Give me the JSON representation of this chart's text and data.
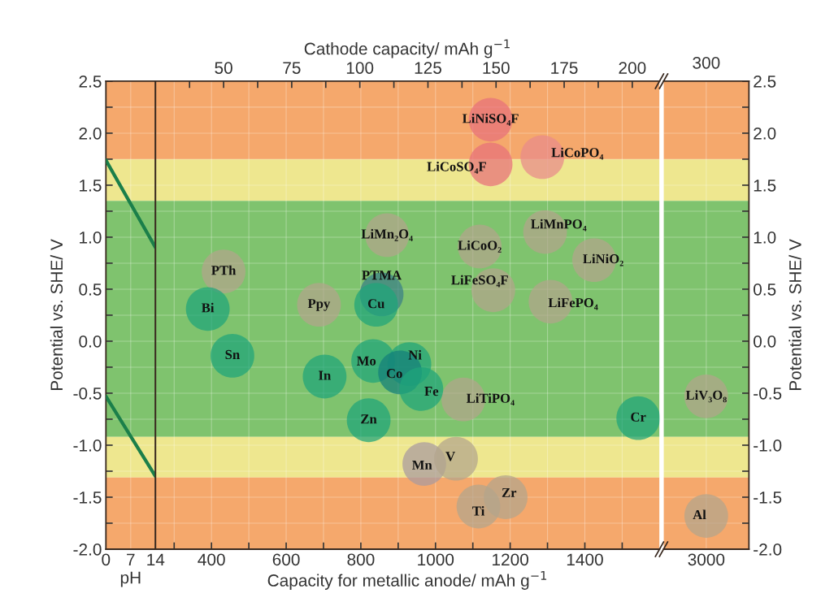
{
  "chart_data": [
    {
      "type": "line",
      "xlabel": "pH",
      "ylabel": "Potential vs. SHE/ V",
      "xlim": [
        0,
        14
      ],
      "xticks": [
        0,
        7,
        14
      ],
      "ylim": [
        -2,
        2.5
      ],
      "yticks": [
        2.5,
        {
          "value": 2.25,
          "label": null
        },
        {
          "value": 2,
          "label": "2.0"
        },
        {
          "value": 1.75,
          "label": null
        },
        1.5,
        {
          "value": 1.25,
          "label": null
        },
        {
          "value": 1,
          "label": "1.0"
        },
        {
          "value": 0.75,
          "label": null
        },
        0.5,
        {
          "value": 0.25,
          "label": null
        },
        {
          "value": 0,
          "label": "0.0"
        },
        {
          "value": -0.25,
          "label": null
        },
        -0.5,
        {
          "value": -0.75,
          "label": null
        },
        {
          "value": -1,
          "label": "-1.0"
        },
        {
          "value": -1.25,
          "label": null
        },
        -1.5,
        {
          "value": -1.75,
          "label": null
        },
        {
          "value": -2,
          "label": "-2.0"
        }
      ],
      "grid": true,
      "bands": [
        {
          "axis": "y",
          "from": 1.75,
          "to": 2.5,
          "color": "#f5a86c"
        },
        {
          "axis": "y",
          "from": 1.35,
          "to": 1.75,
          "color": "#eee78f"
        },
        {
          "axis": "y",
          "from": -0.92,
          "to": 1.35,
          "color": "#7fc36e"
        },
        {
          "axis": "y",
          "from": -1.31,
          "to": -0.92,
          "color": "#eee78f"
        },
        {
          "axis": "y",
          "from": -2,
          "to": -1.31,
          "color": "#f5a86c"
        }
      ],
      "series": [
        {
          "color": "#1b7f4a",
          "x": [
            0,
            14
          ],
          "values": [
            1.74,
            0.9
          ]
        },
        {
          "color": "#1b7f4a",
          "x": [
            0,
            14
          ],
          "values": [
            -0.53,
            -1.3
          ]
        }
      ]
    },
    {
      "type": "scatter",
      "xlabel": "Capacity for metallic anode/ mAh g$^{−1}$",
      "x2label": "Cathode capacity/ mAh g$^{−1}$",
      "xlim": [
        250,
        1600
      ],
      "xticks": [
        {
          "value": 300,
          "label": null
        },
        400,
        {
          "value": 500,
          "label": null
        },
        600,
        {
          "value": 700,
          "label": null
        },
        800,
        {
          "value": 900,
          "label": null
        },
        1000,
        {
          "value": 1100,
          "label": null
        },
        1200,
        {
          "value": 1300,
          "label": null
        },
        1400,
        {
          "value": 1500,
          "label": null
        }
      ],
      "x2lim": [
        25,
        210
      ],
      "x2ticks": [
        {
          "value": 37.5,
          "label": null
        },
        50,
        {
          "value": 62.5,
          "label": null
        },
        75,
        {
          "value": 87.5,
          "label": null
        },
        100,
        {
          "value": 112.5,
          "label": null
        },
        125,
        {
          "value": 137.5,
          "label": null
        },
        150,
        {
          "value": 162.5,
          "label": null
        },
        175,
        {
          "value": 187.5,
          "label": null
        },
        200
      ],
      "ylim": [
        -2,
        2.5
      ],
      "yticks": [
        {
          "value": 2.5,
          "label": null
        },
        {
          "value": 2.25,
          "label": null
        },
        {
          "value": 2,
          "label": null
        },
        {
          "value": 1.75,
          "label": null
        },
        {
          "value": 1.5,
          "label": null
        },
        {
          "value": 1.25,
          "label": null
        },
        {
          "value": 1,
          "label": null
        },
        {
          "value": 0.75,
          "label": null
        },
        {
          "value": 0.5,
          "label": null
        },
        {
          "value": 0.25,
          "label": null
        },
        {
          "value": 0,
          "label": null
        },
        {
          "value": -0.25,
          "label": null
        },
        {
          "value": -0.5,
          "label": null
        },
        {
          "value": -0.75,
          "label": null
        },
        {
          "value": -1,
          "label": null
        },
        {
          "value": -1.25,
          "label": null
        },
        {
          "value": -1.5,
          "label": null
        },
        {
          "value": -1.75,
          "label": null
        },
        {
          "value": -2,
          "label": null
        }
      ],
      "tick_labels": "x",
      "grid": true,
      "marker": "circle",
      "bands": [
        {
          "axis": "y",
          "from": 1.75,
          "to": 2.5,
          "color": "#f5a86c"
        },
        {
          "axis": "y",
          "from": 1.35,
          "to": 1.75,
          "color": "#eee78f"
        },
        {
          "axis": "y",
          "from": -0.92,
          "to": 1.35,
          "color": "#7fc36e"
        },
        {
          "axis": "y",
          "from": -1.31,
          "to": -0.92,
          "color": "#eee78f"
        },
        {
          "axis": "y",
          "from": -2,
          "to": -1.31,
          "color": "#f5a86c"
        }
      ],
      "series": [
        {
          "name": "Bi",
          "color": "#1fa57a",
          "x": [
            390
          ],
          "values": [
            0.31
          ]
        },
        {
          "name": "Sn",
          "color": "#1fa57a",
          "x": [
            456
          ],
          "values": [
            -0.14
          ]
        },
        {
          "name": "In",
          "color": "#1fa57a",
          "x": [
            703
          ],
          "values": [
            -0.34
          ]
        },
        {
          "name": "Cu",
          "color": "#1fa57a",
          "x": [
            841
          ],
          "values": [
            0.35
          ]
        },
        {
          "name": "Mo",
          "color": "#1fa57a",
          "x": [
            833
          ],
          "values": [
            -0.19
          ]
        },
        {
          "name": "Ni",
          "color": "#1fa57a",
          "x": [
            930
          ],
          "values": [
            -0.22
          ]
        },
        {
          "name": "Co",
          "color": "#14807a",
          "x": [
            905
          ],
          "values": [
            -0.3
          ]
        },
        {
          "name": "Fe",
          "color": "#1fa57a",
          "x": [
            962
          ],
          "values": [
            -0.46
          ]
        },
        {
          "name": "Zn",
          "color": "#1fa57a",
          "x": [
            821
          ],
          "values": [
            -0.76
          ]
        },
        {
          "name": "Mn",
          "color": "#a99aa0",
          "x": [
            970
          ],
          "values": [
            -1.18
          ]
        },
        {
          "name": "V",
          "color": "#b3a58c",
          "x": [
            1055
          ],
          "values": [
            -1.13
          ]
        },
        {
          "name": "Ti",
          "color": "#b3a58c",
          "x": [
            1115
          ],
          "values": [
            -1.59
          ]
        },
        {
          "name": "Zr",
          "color": "#b3a58c",
          "x": [
            1188
          ],
          "values": [
            -1.5
          ]
        },
        {
          "name": "Cr",
          "color": "#1fa57a",
          "x": [
            1543
          ],
          "values": [
            -0.74
          ]
        },
        {
          "name": "PTh",
          "axis": "x2",
          "color": "#b3a58c",
          "x": [
            50
          ],
          "values": [
            0.67
          ]
        },
        {
          "name": "Ppy",
          "axis": "x2",
          "color": "#b3a58c",
          "x": [
            85
          ],
          "values": [
            0.35
          ]
        },
        {
          "name": "PTMA",
          "axis": "x2",
          "color": "#3a7f86",
          "x": [
            108
          ],
          "values": [
            0.45
          ]
        },
        {
          "name": "LiMn₂O₄",
          "axis": "x2",
          "color": "#b3a58c",
          "x": [
            110
          ],
          "values": [
            1.02
          ]
        },
        {
          "name": "LiCoO₂",
          "axis": "x2",
          "color": "#b3a58c",
          "x": [
            144
          ],
          "values": [
            0.91
          ]
        },
        {
          "name": "LiFeSO₄F",
          "axis": "x2",
          "color": "#b3a58c",
          "x": [
            149
          ],
          "values": [
            0.49
          ]
        },
        {
          "name": "LiTiPO₄",
          "axis": "x2",
          "color": "#b3a58c",
          "x": [
            138
          ],
          "values": [
            -0.56
          ]
        },
        {
          "name": "LiNiSO₄F",
          "axis": "x2",
          "color": "#e8707a",
          "x": [
            148
          ],
          "values": [
            2.13
          ]
        },
        {
          "name": "LiCoSO₄F",
          "axis": "x2",
          "color": "#e8707a",
          "x": [
            148
          ],
          "values": [
            1.7
          ]
        },
        {
          "name": "LiCoPO₄",
          "axis": "x2",
          "color": "#e98a8a",
          "x": [
            167
          ],
          "values": [
            1.77
          ]
        },
        {
          "name": "LiMnPO₄",
          "axis": "x2",
          "color": "#b3a58c",
          "x": [
            168
          ],
          "values": [
            1.05
          ]
        },
        {
          "name": "LiNiO₂",
          "axis": "x2",
          "color": "#b3a58c",
          "x": [
            186
          ],
          "values": [
            0.78
          ]
        },
        {
          "name": "LiFePO₄",
          "axis": "x2",
          "color": "#b3a58c",
          "x": [
            170
          ],
          "values": [
            0.38
          ]
        }
      ]
    },
    {
      "type": "scatter",
      "ylabel": "Potential vs. SHE/ V",
      "categories": [
        "3000"
      ],
      "annotations": [
        "300"
      ],
      "ylim": [
        -2,
        2.5
      ],
      "yticks": [
        2.5,
        {
          "value": 2.25,
          "label": null
        },
        {
          "value": 2,
          "label": "2.0"
        },
        {
          "value": 1.75,
          "label": null
        },
        1.5,
        {
          "value": 1.25,
          "label": null
        },
        {
          "value": 1,
          "label": "1.0"
        },
        {
          "value": 0.75,
          "label": null
        },
        0.5,
        {
          "value": 0.25,
          "label": null
        },
        {
          "value": 0,
          "label": "0.0"
        },
        {
          "value": -0.25,
          "label": null
        },
        -0.5,
        {
          "value": -0.75,
          "label": null
        },
        {
          "value": -1,
          "label": "-1.0"
        },
        {
          "value": -1.25,
          "label": null
        },
        -1.5,
        {
          "value": -1.75,
          "label": null
        },
        {
          "value": -2,
          "label": "-2.0"
        }
      ],
      "grid": true,
      "marker": "circle",
      "bands": [
        {
          "axis": "y",
          "from": 1.75,
          "to": 2.5,
          "color": "#f5a86c"
        },
        {
          "axis": "y",
          "from": 1.35,
          "to": 1.75,
          "color": "#eee78f"
        },
        {
          "axis": "y",
          "from": -0.92,
          "to": 1.35,
          "color": "#7fc36e"
        },
        {
          "axis": "y",
          "from": -1.31,
          "to": -0.92,
          "color": "#eee78f"
        },
        {
          "axis": "y",
          "from": -2,
          "to": -1.31,
          "color": "#f5a86c"
        }
      ],
      "series": [
        {
          "name": "Al",
          "color": "#b3a58c",
          "values": [
            -1.68
          ]
        },
        {
          "name": "LiV₃O₈",
          "color": "#b3a58c",
          "values": [
            -0.53
          ]
        }
      ]
    }
  ]
}
